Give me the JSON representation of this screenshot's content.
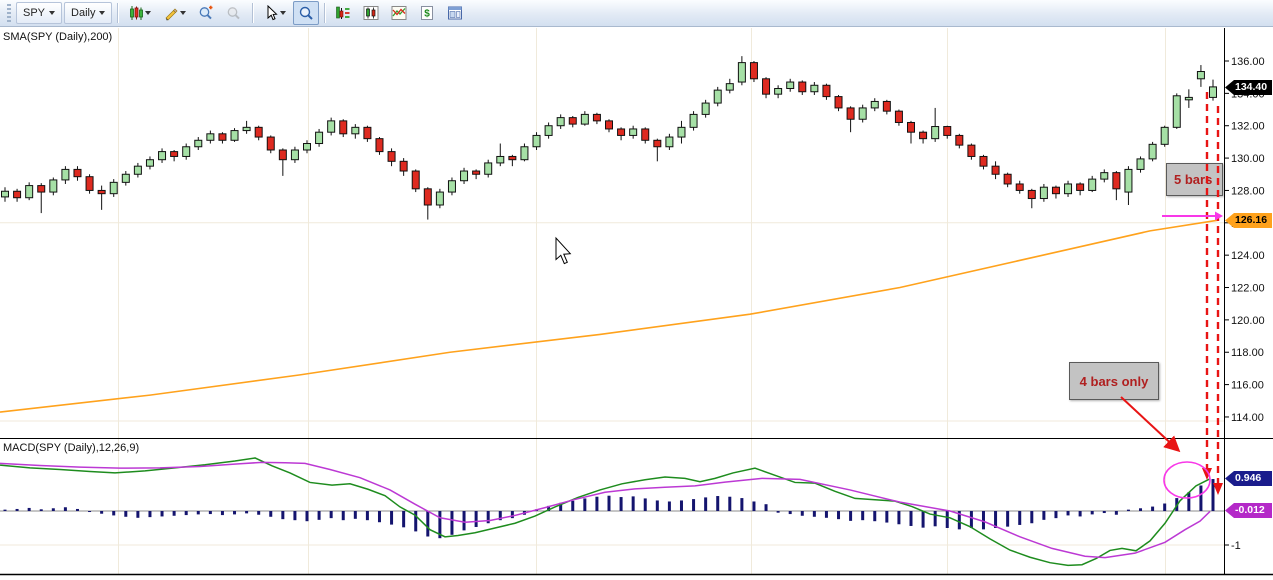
{
  "toolbar": {
    "symbol": "SPY",
    "interval": "Daily",
    "glyphs": {
      "dollar": "$"
    },
    "icon_names": [
      "grip-handle",
      "symbol-dropdown",
      "interval-dropdown",
      "candlestick-style-icon",
      "pencil-icon",
      "zoom-in-icon",
      "zoom-out-icon",
      "pointer-icon",
      "pointer-tracking-icon",
      "insert-study-icon",
      "format-bars-icon",
      "format-studies-icon",
      "dollar-icon",
      "workspace-icon"
    ]
  },
  "colors": {
    "up": "#A6E0A6",
    "down": "#DE2A20",
    "candle_stroke": "#111111",
    "sma": "#FFA21C",
    "macd": "#1E8C1E",
    "signal": "#BC39D4",
    "histogram": "#14146E",
    "grid": "#F0EADB",
    "zero_line": "#8E8E8E",
    "axis": "#000000",
    "anno_red": "#E81414",
    "magenta": "#F838E8",
    "box_bg": "#C3C3C3",
    "box_text": "#B02020",
    "badge_last_bg": "#000000",
    "badge_sma_bg": "#FFA21C",
    "badge_macd_bg": "#1A1C8C",
    "badge_signal_bg": "#B429C8"
  },
  "annotations": {
    "five_bars": "5 bars",
    "four_bars": "4 bars only"
  },
  "price_chart": {
    "indicator_label": "SMA(SPY (Daily),200)",
    "badges": {
      "last_price": "134.40",
      "sma_value": "126.16"
    },
    "axis_ticks": [
      {
        "value": 136,
        "label": "136.00"
      },
      {
        "value": 134,
        "label": "134.00"
      },
      {
        "value": 132,
        "label": "132.00"
      },
      {
        "value": 130,
        "label": "130.00"
      },
      {
        "value": 128,
        "label": "128.00"
      },
      {
        "value": 126,
        "label": "126.00"
      },
      {
        "value": 124,
        "label": "124.00"
      },
      {
        "value": 122,
        "label": "122.00"
      },
      {
        "value": 120,
        "label": "120.00"
      },
      {
        "value": 118,
        "label": "118.00"
      },
      {
        "value": 116,
        "label": "116.00"
      },
      {
        "value": 114,
        "label": "114.00"
      }
    ],
    "v_gridlines": [
      118,
      308,
      536,
      751,
      947,
      1165
    ],
    "h_gridline_prices": [
      126.0,
      113.75
    ],
    "sma_points": [
      [
        0,
        114.3
      ],
      [
        150,
        115.35
      ],
      [
        300,
        116.6
      ],
      [
        450,
        118.0
      ],
      [
        600,
        119.1
      ],
      [
        750,
        120.35
      ],
      [
        900,
        122.0
      ],
      [
        1050,
        124.1
      ],
      [
        1150,
        125.5
      ],
      [
        1218,
        126.16
      ]
    ],
    "candles": [
      [
        127.6,
        128.2,
        127.3,
        127.95
      ],
      [
        127.95,
        128.1,
        127.3,
        127.55
      ],
      [
        127.55,
        128.5,
        127.4,
        128.3
      ],
      [
        128.3,
        128.45,
        126.6,
        127.9
      ],
      [
        127.9,
        128.8,
        127.7,
        128.65
      ],
      [
        128.65,
        129.5,
        128.4,
        129.3
      ],
      [
        129.3,
        129.5,
        128.6,
        128.85
      ],
      [
        128.85,
        129.0,
        127.8,
        128.0
      ],
      [
        128.0,
        128.3,
        126.8,
        127.8
      ],
      [
        127.8,
        128.7,
        127.6,
        128.5
      ],
      [
        128.5,
        129.2,
        128.3,
        129.0
      ],
      [
        129.0,
        129.7,
        128.8,
        129.5
      ],
      [
        129.5,
        130.1,
        129.3,
        129.9
      ],
      [
        129.9,
        130.6,
        129.7,
        130.4
      ],
      [
        130.4,
        130.5,
        129.8,
        130.1
      ],
      [
        130.1,
        130.9,
        129.9,
        130.7
      ],
      [
        130.7,
        131.3,
        130.5,
        131.1
      ],
      [
        131.1,
        131.7,
        130.9,
        131.5
      ],
      [
        131.5,
        131.6,
        130.9,
        131.1
      ],
      [
        131.1,
        131.85,
        131.0,
        131.7
      ],
      [
        131.7,
        132.3,
        131.5,
        131.9
      ],
      [
        131.9,
        132.0,
        131.1,
        131.3
      ],
      [
        131.3,
        131.4,
        130.3,
        130.5
      ],
      [
        130.5,
        130.6,
        128.9,
        129.9
      ],
      [
        129.9,
        130.7,
        129.7,
        130.5
      ],
      [
        130.5,
        131.1,
        130.3,
        130.9
      ],
      [
        130.9,
        131.8,
        130.7,
        131.6
      ],
      [
        131.6,
        132.5,
        131.4,
        132.3
      ],
      [
        132.3,
        132.4,
        131.3,
        131.5
      ],
      [
        131.5,
        132.1,
        131.2,
        131.9
      ],
      [
        131.9,
        132.0,
        131.0,
        131.2
      ],
      [
        131.2,
        131.3,
        130.2,
        130.4
      ],
      [
        130.4,
        130.6,
        129.5,
        129.8
      ],
      [
        129.8,
        130.0,
        128.9,
        129.2
      ],
      [
        129.2,
        129.3,
        127.9,
        128.1
      ],
      [
        128.1,
        128.2,
        126.2,
        127.1
      ],
      [
        127.1,
        128.1,
        126.9,
        127.9
      ],
      [
        127.9,
        128.8,
        127.7,
        128.6
      ],
      [
        128.6,
        129.4,
        128.4,
        129.2
      ],
      [
        129.2,
        129.3,
        128.7,
        129.0
      ],
      [
        129.0,
        129.9,
        128.8,
        129.7
      ],
      [
        129.7,
        130.9,
        129.5,
        130.1
      ],
      [
        130.1,
        130.2,
        129.5,
        129.9
      ],
      [
        129.9,
        130.9,
        129.8,
        130.7
      ],
      [
        130.7,
        131.6,
        130.5,
        131.4
      ],
      [
        131.4,
        132.2,
        131.2,
        132.0
      ],
      [
        132.0,
        132.7,
        131.8,
        132.5
      ],
      [
        132.5,
        132.6,
        131.9,
        132.1
      ],
      [
        132.1,
        132.9,
        132.0,
        132.7
      ],
      [
        132.7,
        132.8,
        132.1,
        132.3
      ],
      [
        132.3,
        132.4,
        131.6,
        131.8
      ],
      [
        131.8,
        131.9,
        131.1,
        131.4
      ],
      [
        131.4,
        132.0,
        131.2,
        131.8
      ],
      [
        131.8,
        131.9,
        130.9,
        131.1
      ],
      [
        131.1,
        131.2,
        129.8,
        130.7
      ],
      [
        130.7,
        131.5,
        130.5,
        131.3
      ],
      [
        131.3,
        132.3,
        130.9,
        131.9
      ],
      [
        131.9,
        132.9,
        131.7,
        132.7
      ],
      [
        132.7,
        133.6,
        132.5,
        133.4
      ],
      [
        133.4,
        134.4,
        133.2,
        134.2
      ],
      [
        134.2,
        134.9,
        134.0,
        134.6
      ],
      [
        134.7,
        136.3,
        134.5,
        135.9
      ],
      [
        135.9,
        136.0,
        134.7,
        134.9
      ],
      [
        134.9,
        135.0,
        133.7,
        133.95
      ],
      [
        133.95,
        134.5,
        133.7,
        134.3
      ],
      [
        134.3,
        134.9,
        134.1,
        134.7
      ],
      [
        134.7,
        134.8,
        133.9,
        134.1
      ],
      [
        134.1,
        134.7,
        133.9,
        134.5
      ],
      [
        134.5,
        134.6,
        133.6,
        133.8
      ],
      [
        133.8,
        133.9,
        132.9,
        133.1
      ],
      [
        133.1,
        133.2,
        131.6,
        132.4
      ],
      [
        132.4,
        133.3,
        132.2,
        133.1
      ],
      [
        133.1,
        133.7,
        132.9,
        133.5
      ],
      [
        133.5,
        133.6,
        132.7,
        132.9
      ],
      [
        132.9,
        133.0,
        132.0,
        132.2
      ],
      [
        132.2,
        132.3,
        130.9,
        131.6
      ],
      [
        131.6,
        131.7,
        130.9,
        131.2
      ],
      [
        131.2,
        133.1,
        131.0,
        131.95
      ],
      [
        131.95,
        132.0,
        131.2,
        131.4
      ],
      [
        131.4,
        131.5,
        130.6,
        130.8
      ],
      [
        130.8,
        130.9,
        129.9,
        130.1
      ],
      [
        130.1,
        130.2,
        129.3,
        129.5
      ],
      [
        129.5,
        129.8,
        128.7,
        129.0
      ],
      [
        129.0,
        129.1,
        128.2,
        128.4
      ],
      [
        128.4,
        128.6,
        127.8,
        128.0
      ],
      [
        128.0,
        128.1,
        126.9,
        127.5
      ],
      [
        127.5,
        128.4,
        127.3,
        128.2
      ],
      [
        128.2,
        128.3,
        127.5,
        127.8
      ],
      [
        127.8,
        128.6,
        127.6,
        128.4
      ],
      [
        128.4,
        128.5,
        127.7,
        128.0
      ],
      [
        128.0,
        128.9,
        127.9,
        128.7
      ],
      [
        128.7,
        129.3,
        128.5,
        129.1
      ],
      [
        129.1,
        129.2,
        127.4,
        128.1
      ],
      [
        127.9,
        129.5,
        127.1,
        129.3
      ],
      [
        129.3,
        130.1,
        129.1,
        129.95
      ],
      [
        129.95,
        131.0,
        129.8,
        130.85
      ],
      [
        130.85,
        132.0,
        130.7,
        131.9
      ],
      [
        131.9,
        134.0,
        131.8,
        133.85
      ],
      [
        133.6,
        134.25,
        133.1,
        133.75
      ],
      [
        134.9,
        135.75,
        134.4,
        135.35
      ],
      [
        133.75,
        134.85,
        133.55,
        134.4
      ]
    ]
  },
  "macd_panel": {
    "indicator_label": "MACD(SPY (Daily),12,26,9)",
    "badges": {
      "macd_value": "0.946",
      "signal_value": "-0.012"
    },
    "axis_ticks": [
      {
        "value": -1,
        "label": "-1"
      }
    ],
    "macd_line": [
      [
        0,
        1.35
      ],
      [
        30,
        1.27
      ],
      [
        60,
        1.22
      ],
      [
        90,
        1.16
      ],
      [
        115,
        1.12
      ],
      [
        145,
        1.18
      ],
      [
        175,
        1.27
      ],
      [
        205,
        1.36
      ],
      [
        235,
        1.47
      ],
      [
        255,
        1.56
      ],
      [
        272,
        1.33
      ],
      [
        290,
        1.12
      ],
      [
        310,
        0.84
      ],
      [
        332,
        0.76
      ],
      [
        350,
        0.8
      ],
      [
        368,
        0.64
      ],
      [
        385,
        0.45
      ],
      [
        400,
        0.12
      ],
      [
        415,
        -0.12
      ],
      [
        430,
        -0.55
      ],
      [
        445,
        -0.76
      ],
      [
        458,
        -0.72
      ],
      [
        475,
        -0.64
      ],
      [
        495,
        -0.5
      ],
      [
        515,
        -0.36
      ],
      [
        535,
        -0.15
      ],
      [
        555,
        0.12
      ],
      [
        578,
        0.4
      ],
      [
        600,
        0.62
      ],
      [
        622,
        0.8
      ],
      [
        645,
        0.92
      ],
      [
        665,
        1.0
      ],
      [
        685,
        0.96
      ],
      [
        700,
        0.86
      ],
      [
        715,
        0.96
      ],
      [
        733,
        1.12
      ],
      [
        755,
        1.26
      ],
      [
        775,
        1.05
      ],
      [
        795,
        0.84
      ],
      [
        815,
        0.82
      ],
      [
        835,
        0.58
      ],
      [
        855,
        0.37
      ],
      [
        875,
        0.33
      ],
      [
        895,
        0.29
      ],
      [
        912,
        0.13
      ],
      [
        930,
        -0.09
      ],
      [
        950,
        -0.2
      ],
      [
        970,
        -0.46
      ],
      [
        990,
        -0.82
      ],
      [
        1010,
        -1.15
      ],
      [
        1030,
        -1.36
      ],
      [
        1050,
        -1.52
      ],
      [
        1068,
        -1.6
      ],
      [
        1082,
        -1.58
      ],
      [
        1096,
        -1.4
      ],
      [
        1110,
        -1.16
      ],
      [
        1122,
        -1.1
      ],
      [
        1136,
        -1.17
      ],
      [
        1150,
        -0.88
      ],
      [
        1165,
        -0.36
      ],
      [
        1180,
        0.3
      ],
      [
        1196,
        0.74
      ],
      [
        1210,
        0.946
      ]
    ],
    "signal_line": [
      [
        0,
        1.4
      ],
      [
        40,
        1.34
      ],
      [
        80,
        1.29
      ],
      [
        120,
        1.26
      ],
      [
        160,
        1.27
      ],
      [
        200,
        1.31
      ],
      [
        240,
        1.39
      ],
      [
        262,
        1.43
      ],
      [
        285,
        1.42
      ],
      [
        305,
        1.4
      ],
      [
        330,
        1.22
      ],
      [
        360,
        0.98
      ],
      [
        390,
        0.62
      ],
      [
        415,
        0.2
      ],
      [
        440,
        -0.2
      ],
      [
        465,
        -0.33
      ],
      [
        490,
        -0.28
      ],
      [
        515,
        -0.13
      ],
      [
        545,
        0.1
      ],
      [
        575,
        0.34
      ],
      [
        605,
        0.55
      ],
      [
        635,
        0.65
      ],
      [
        665,
        0.7
      ],
      [
        695,
        0.74
      ],
      [
        725,
        0.85
      ],
      [
        762,
        0.96
      ],
      [
        800,
        0.93
      ],
      [
        850,
        0.62
      ],
      [
        900,
        0.26
      ],
      [
        950,
        0.0
      ],
      [
        985,
        -0.32
      ],
      [
        1020,
        -0.76
      ],
      [
        1052,
        -1.1
      ],
      [
        1085,
        -1.33
      ],
      [
        1105,
        -1.37
      ],
      [
        1135,
        -1.24
      ],
      [
        1165,
        -0.92
      ],
      [
        1185,
        -0.55
      ],
      [
        1200,
        -0.3
      ],
      [
        1210,
        -0.012
      ]
    ],
    "histogram": [
      0.04,
      0.06,
      0.09,
      0.05,
      0.08,
      0.11,
      0.06,
      -0.03,
      -0.08,
      -0.13,
      -0.17,
      -0.2,
      -0.18,
      -0.16,
      -0.14,
      -0.12,
      -0.1,
      -0.09,
      -0.12,
      -0.1,
      -0.07,
      -0.11,
      -0.17,
      -0.24,
      -0.27,
      -0.3,
      -0.26,
      -0.21,
      -0.27,
      -0.23,
      -0.27,
      -0.33,
      -0.4,
      -0.48,
      -0.6,
      -0.75,
      -0.8,
      -0.7,
      -0.57,
      -0.47,
      -0.36,
      -0.27,
      -0.21,
      -0.11,
      0.05,
      0.15,
      0.24,
      0.3,
      0.37,
      0.42,
      0.45,
      0.41,
      0.43,
      0.37,
      0.31,
      0.28,
      0.31,
      0.35,
      0.4,
      0.44,
      0.42,
      0.38,
      0.28,
      0.2,
      -0.05,
      -0.09,
      -0.14,
      -0.17,
      -0.2,
      -0.24,
      -0.29,
      -0.27,
      -0.3,
      -0.34,
      -0.39,
      -0.44,
      -0.49,
      -0.45,
      -0.5,
      -0.54,
      -0.5,
      -0.54,
      -0.5,
      -0.46,
      -0.41,
      -0.36,
      -0.26,
      -0.21,
      -0.13,
      -0.16,
      -0.1,
      -0.06,
      -0.11,
      0.04,
      0.08,
      0.13,
      0.22,
      0.38,
      0.55,
      0.75,
      0.94
    ]
  }
}
